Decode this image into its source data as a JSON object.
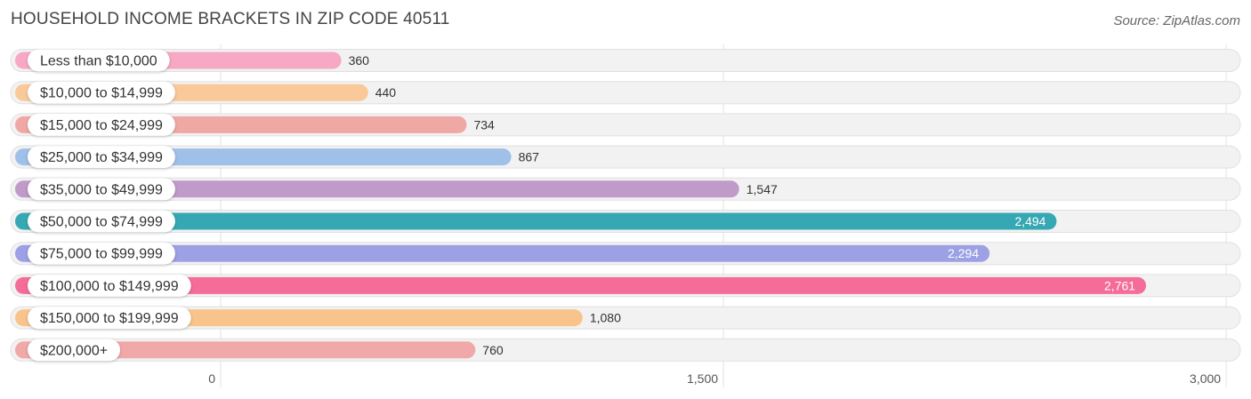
{
  "header": {
    "title": "HOUSEHOLD INCOME BRACKETS IN ZIP CODE 40511",
    "source": "Source: ZipAtlas.com"
  },
  "chart_data": {
    "type": "bar",
    "orientation": "horizontal",
    "title": "HOUSEHOLD INCOME BRACKETS IN ZIP CODE 40511",
    "xlabel": "",
    "ylabel": "",
    "xlim": [
      0,
      3000
    ],
    "grid": true,
    "categories": [
      "Less than $10,000",
      "$10,000 to $14,999",
      "$15,000 to $24,999",
      "$25,000 to $34,999",
      "$35,000 to $49,999",
      "$50,000 to $74,999",
      "$75,000 to $99,999",
      "$100,000 to $149,999",
      "$150,000 to $199,999",
      "$200,000+"
    ],
    "values": [
      360,
      440,
      734,
      867,
      1547,
      2494,
      2294,
      2761,
      1080,
      760
    ],
    "value_labels": [
      "360",
      "440",
      "734",
      "867",
      "1,547",
      "2,494",
      "2,294",
      "2,761",
      "1,080",
      "760"
    ],
    "colors": [
      "#f7a8c4",
      "#f9c99a",
      "#f0a8a4",
      "#9fc0e8",
      "#c09ac8",
      "#36a8b4",
      "#9ca0e4",
      "#f56c98",
      "#f9c48c",
      "#f0a8a8"
    ],
    "ticks": [
      0,
      1500,
      3000
    ],
    "tick_labels": [
      "0",
      "1,500",
      "3,000"
    ]
  }
}
